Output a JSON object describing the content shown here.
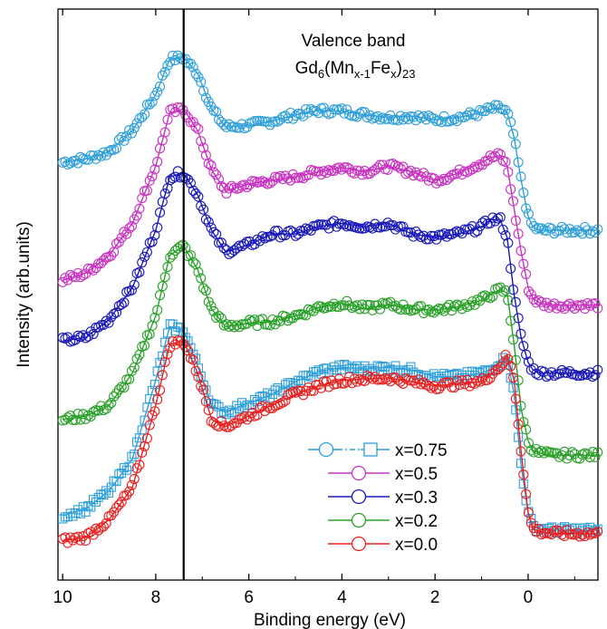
{
  "chart_data": {
    "type": "scatter",
    "title": "Valence band",
    "subtitle": {
      "base": "Gd",
      "sub1": "6",
      "open": "(Mn",
      "sub2": "x-1",
      "mid": "Fe",
      "sub3": "x",
      "close": ")",
      "sub4": "23"
    },
    "xlabel": "Binding energy (eV)",
    "ylabel": "Intensity (arb.units)",
    "xlim": [
      10.1,
      -1.5
    ],
    "x_reversed": true,
    "xticks": [
      10,
      8,
      6,
      4,
      2,
      0
    ],
    "reference_line_x": 7.4,
    "legend_position": "bottom-right",
    "x": [
      10.0,
      9.5,
      9.0,
      8.5,
      8.0,
      7.7,
      7.4,
      7.1,
      6.8,
      6.5,
      6.0,
      5.5,
      5.0,
      4.5,
      4.0,
      3.5,
      3.0,
      2.5,
      2.0,
      1.5,
      1.0,
      0.8,
      0.6,
      0.45,
      0.3,
      0.15,
      0.0,
      -0.1,
      -0.25,
      -0.5,
      -1.0,
      -1.5
    ],
    "series": [
      {
        "name": "x=0.75",
        "color": "#2f9fd8",
        "marker": "circle",
        "values": [
          7.85,
          7.9,
          8.0,
          8.3,
          8.8,
          9.3,
          9.32,
          9.1,
          8.6,
          8.35,
          8.37,
          8.43,
          8.52,
          8.58,
          8.57,
          8.52,
          8.48,
          8.5,
          8.45,
          8.48,
          8.55,
          8.6,
          8.62,
          8.55,
          8.2,
          7.6,
          7.1,
          6.95,
          6.9,
          6.9,
          6.9,
          6.9
        ]
      },
      {
        "name": "x=0.5",
        "color": "#c832c0",
        "marker": "circle",
        "values": [
          6.2,
          6.3,
          6.55,
          7.0,
          7.8,
          8.55,
          8.6,
          8.3,
          7.75,
          7.45,
          7.55,
          7.6,
          7.65,
          7.72,
          7.78,
          7.72,
          7.8,
          7.72,
          7.6,
          7.7,
          7.85,
          7.92,
          7.95,
          7.8,
          7.2,
          6.6,
          6.1,
          5.95,
          5.88,
          5.85,
          5.85,
          5.85
        ]
      },
      {
        "name": "x=0.3",
        "color": "#1818b8",
        "marker": "circle",
        "values": [
          5.35,
          5.4,
          5.65,
          6.1,
          6.9,
          7.65,
          7.7,
          7.4,
          6.9,
          6.6,
          6.7,
          6.85,
          6.85,
          6.95,
          7.0,
          6.95,
          7.0,
          6.85,
          6.8,
          6.85,
          6.95,
          7.05,
          7.05,
          6.8,
          6.0,
          5.4,
          5.05,
          4.95,
          4.9,
          4.9,
          4.9,
          4.9
        ]
      },
      {
        "name": "x=0.2",
        "color": "#28a028",
        "marker": "circle",
        "values": [
          4.25,
          4.3,
          4.45,
          4.9,
          5.7,
          6.55,
          6.68,
          6.35,
          5.8,
          5.55,
          5.6,
          5.62,
          5.7,
          5.82,
          5.88,
          5.8,
          5.86,
          5.8,
          5.78,
          5.83,
          5.92,
          6.0,
          6.07,
          6.02,
          5.3,
          4.4,
          3.95,
          3.82,
          3.78,
          3.75,
          3.75,
          3.75
        ]
      },
      {
        "name": "x=0.75",
        "color": "#2f9fd8",
        "marker": "square",
        "values": [
          2.9,
          3.0,
          3.25,
          3.7,
          4.8,
          5.55,
          5.5,
          5.0,
          4.45,
          4.35,
          4.48,
          4.6,
          4.78,
          4.92,
          4.98,
          4.96,
          4.98,
          4.94,
          4.85,
          4.85,
          4.9,
          4.95,
          5.05,
          5.12,
          4.6,
          3.6,
          2.95,
          2.75,
          2.72,
          2.7,
          2.7,
          2.7
        ]
      },
      {
        "name": "x=0.0",
        "color": "#e82020",
        "marker": "circle",
        "values": [
          2.55,
          2.6,
          2.85,
          3.3,
          4.45,
          5.3,
          5.35,
          4.9,
          4.25,
          4.15,
          4.3,
          4.45,
          4.6,
          4.72,
          4.8,
          4.82,
          4.83,
          4.78,
          4.72,
          4.75,
          4.78,
          4.88,
          5.0,
          5.15,
          4.8,
          3.8,
          2.95,
          2.72,
          2.68,
          2.65,
          2.65,
          2.65
        ]
      }
    ],
    "ylim": [
      2.0,
      10.0
    ],
    "legend": [
      {
        "label": "x=0.75",
        "color": "#2f9fd8",
        "combo": true
      },
      {
        "label": "x=0.5",
        "color": "#c832c0",
        "combo": false
      },
      {
        "label": "x=0.3",
        "color": "#1818b8",
        "combo": false
      },
      {
        "label": "x=0.2",
        "color": "#28a028",
        "combo": false
      },
      {
        "label": "x=0.0",
        "color": "#e82020",
        "combo": false
      }
    ]
  }
}
